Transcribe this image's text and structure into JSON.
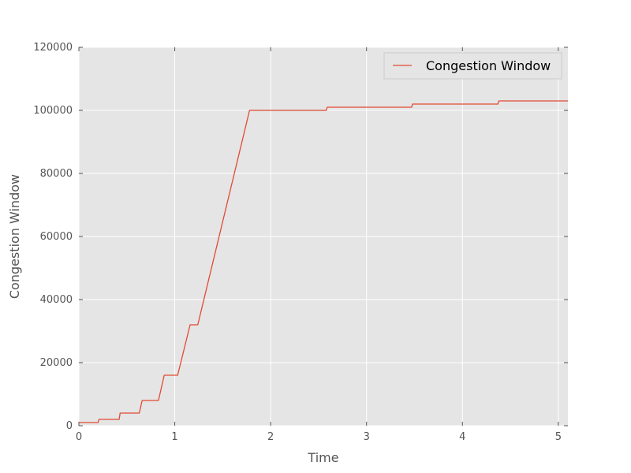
{
  "chart_data": {
    "type": "line",
    "title": "",
    "xlabel": "Time",
    "ylabel": "Congestion Window",
    "xlim": [
      0,
      5.1
    ],
    "ylim": [
      0,
      120000
    ],
    "x_ticks": [
      0,
      1,
      2,
      3,
      4,
      5
    ],
    "x_tick_labels": [
      "0",
      "1",
      "2",
      "3",
      "4",
      "5"
    ],
    "y_ticks": [
      0,
      20000,
      40000,
      60000,
      80000,
      100000,
      120000
    ],
    "y_tick_labels": [
      "0",
      "20000",
      "40000",
      "60000",
      "80000",
      "100000",
      "120000"
    ],
    "grid": true,
    "legend": {
      "position": "top-right"
    },
    "series": [
      {
        "name": "Congestion Window",
        "color": "#e24a33",
        "x": [
          0,
          0.2,
          0.21,
          0.42,
          0.43,
          0.63,
          0.66,
          0.83,
          0.89,
          1.03,
          1.16,
          1.24,
          1.78,
          2.58,
          2.59,
          3.47,
          3.48,
          4.37,
          4.38,
          5.1
        ],
        "y": [
          1000,
          1000,
          2000,
          2000,
          4000,
          4000,
          8000,
          8000,
          16000,
          16000,
          32000,
          32000,
          100000,
          100000,
          101000,
          101000,
          102000,
          102000,
          103000,
          103000
        ]
      }
    ]
  }
}
